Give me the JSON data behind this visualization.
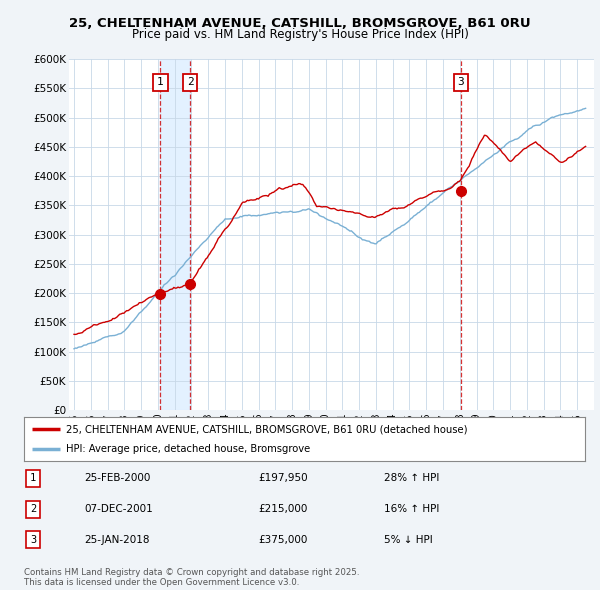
{
  "title_line1": "25, CHELTENHAM AVENUE, CATSHILL, BROMSGROVE, B61 0RU",
  "title_line2": "Price paid vs. HM Land Registry's House Price Index (HPI)",
  "ylim": [
    0,
    600000
  ],
  "yticks": [
    0,
    50000,
    100000,
    150000,
    200000,
    250000,
    300000,
    350000,
    400000,
    450000,
    500000,
    550000,
    600000
  ],
  "ytick_labels": [
    "£0",
    "£50K",
    "£100K",
    "£150K",
    "£200K",
    "£250K",
    "£300K",
    "£350K",
    "£400K",
    "£450K",
    "£500K",
    "£550K",
    "£600K"
  ],
  "legend_label_red": "25, CHELTENHAM AVENUE, CATSHILL, BROMSGROVE, B61 0RU (detached house)",
  "legend_label_blue": "HPI: Average price, detached house, Bromsgrove",
  "red_color": "#cc0000",
  "blue_color": "#7ab0d4",
  "shade_color": "#ddeeff",
  "transaction_labels": [
    "1",
    "2",
    "3"
  ],
  "transaction_dates_num": [
    2000.14,
    2001.92,
    2018.07
  ],
  "transaction_prices": [
    197950,
    215000,
    375000
  ],
  "transaction_display": [
    {
      "num": "1",
      "date": "25-FEB-2000",
      "price": "£197,950",
      "hpi": "28% ↑ HPI"
    },
    {
      "num": "2",
      "date": "07-DEC-2001",
      "price": "£215,000",
      "hpi": "16% ↑ HPI"
    },
    {
      "num": "3",
      "date": "25-JAN-2018",
      "price": "£375,000",
      "hpi": "5% ↓ HPI"
    }
  ],
  "footer": "Contains HM Land Registry data © Crown copyright and database right 2025.\nThis data is licensed under the Open Government Licence v3.0.",
  "bg_color": "#f0f4f8",
  "plot_bg_color": "#ffffff"
}
